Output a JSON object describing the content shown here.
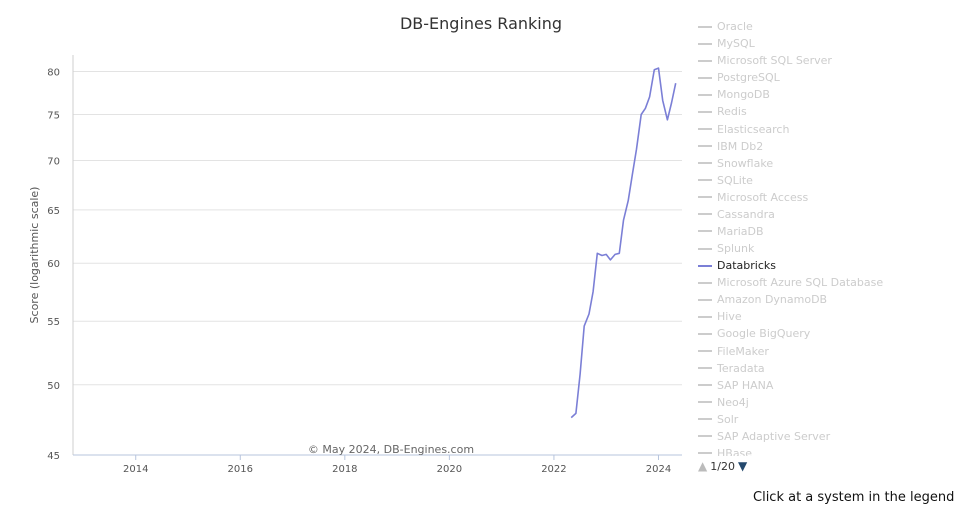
{
  "chart_data": {
    "type": "line",
    "title": "DB-Engines Ranking",
    "ylabel": "Score (logarithmic scale)",
    "xlabel": "",
    "credit": "© May 2024, DB-Engines.com",
    "y_scale": "log",
    "ylim": [
      45,
      82
    ],
    "xlim": [
      2012.8,
      2024.45
    ],
    "y_ticks": [
      45,
      50,
      55,
      60,
      65,
      70,
      75,
      80
    ],
    "x_ticks": [
      2014,
      2016,
      2018,
      2020,
      2022,
      2024
    ],
    "grid": true,
    "legend_position": "right",
    "series": [
      {
        "name": "Databricks",
        "color": "#7b7fd6",
        "x": [
          2022.33,
          2022.42,
          2022.5,
          2022.58,
          2022.67,
          2022.75,
          2022.83,
          2022.92,
          2023.0,
          2023.08,
          2023.17,
          2023.25,
          2023.33,
          2023.42,
          2023.5,
          2023.58,
          2023.67,
          2023.75,
          2023.83,
          2023.92,
          2024.0,
          2024.08,
          2024.17,
          2024.25,
          2024.33
        ],
        "y": [
          47.6,
          47.9,
          50.8,
          54.6,
          55.6,
          57.5,
          60.9,
          60.7,
          60.8,
          60.3,
          60.8,
          60.9,
          64.0,
          65.9,
          68.5,
          71.2,
          75.0,
          75.7,
          77.0,
          80.2,
          80.4,
          76.6,
          74.4,
          76.3,
          78.6
        ]
      }
    ]
  },
  "legend": {
    "items": [
      "Oracle",
      "MySQL",
      "Microsoft SQL Server",
      "PostgreSQL",
      "MongoDB",
      "Redis",
      "Elasticsearch",
      "IBM Db2",
      "Snowflake",
      "SQLite",
      "Microsoft Access",
      "Cassandra",
      "MariaDB",
      "Splunk",
      "Databricks",
      "Microsoft Azure SQL Database",
      "Amazon DynamoDB",
      "Hive",
      "Google BigQuery",
      "FileMaker",
      "Teradata",
      "SAP HANA",
      "Neo4j",
      "Solr",
      "SAP Adaptive Server",
      "HBase"
    ],
    "active": "Databricks",
    "pager": "1/20",
    "up_icon": "▲",
    "down_icon": "▼"
  },
  "hint": "Click at a system in the legend"
}
